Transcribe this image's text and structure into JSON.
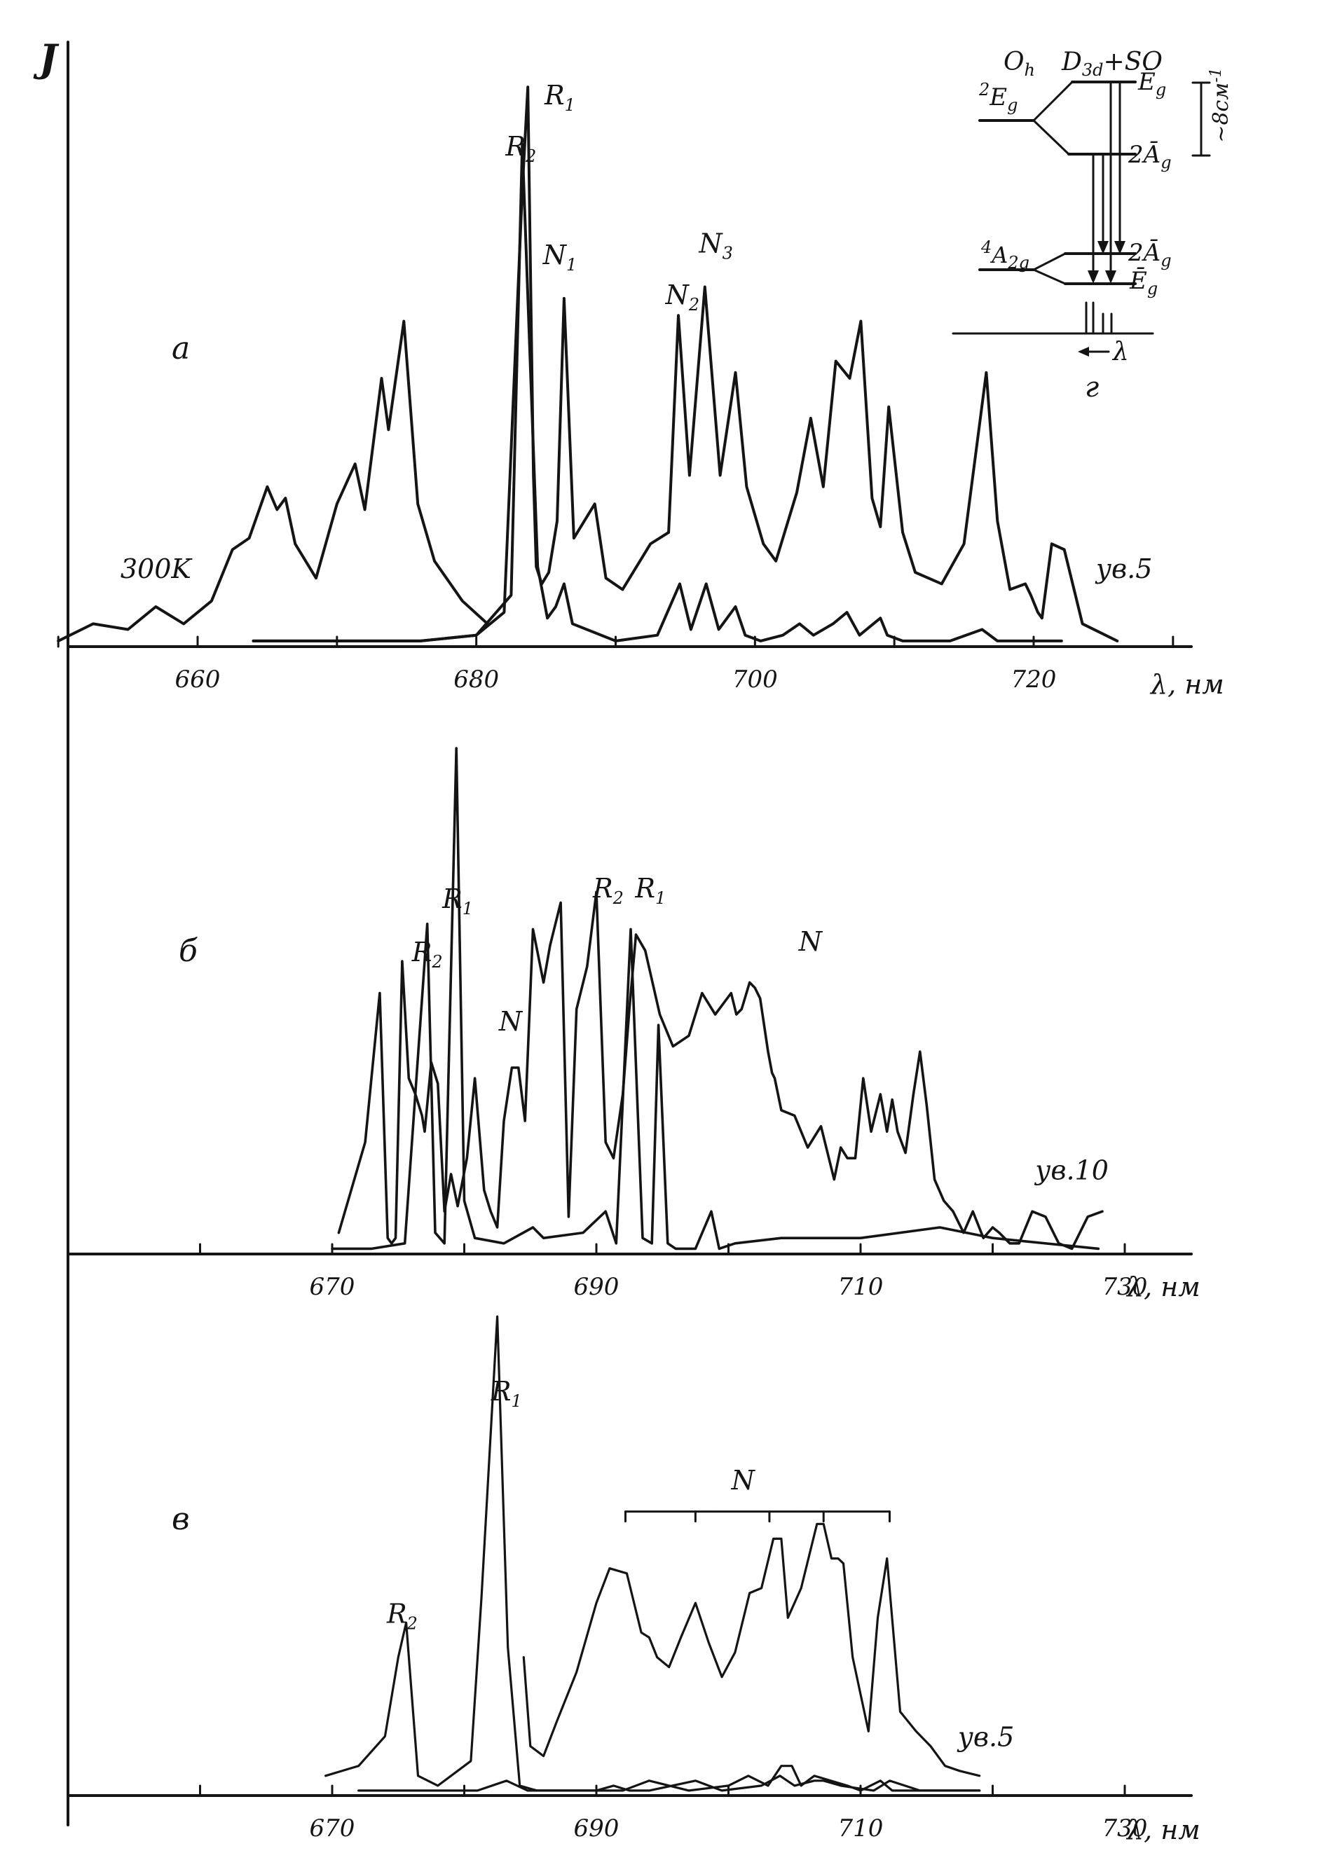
{
  "figure": {
    "y_axis_label": "J",
    "colors": {
      "ink": "#141414",
      "background": "#ffffff"
    }
  },
  "chart_data": [
    {
      "type": "line",
      "panel_label": "а",
      "xlabel": "λ, нм",
      "x_ticks": [
        "660",
        "680",
        "700",
        "720"
      ],
      "xlim": [
        650,
        730
      ],
      "ylim": [
        0,
        1
      ],
      "grid": false,
      "annotations": [
        {
          "text": "300K",
          "x": 657,
          "y": 0.12
        },
        {
          "text": "R",
          "sub": "2",
          "x": 683.2,
          "y": 0.86
        },
        {
          "text": "R",
          "sub": "1",
          "x": 686.0,
          "y": 0.95
        },
        {
          "text": "N",
          "sub": "1",
          "x": 686.0,
          "y": 0.67
        },
        {
          "text": "N",
          "sub": "2",
          "x": 694.8,
          "y": 0.6
        },
        {
          "text": "N",
          "sub": "3",
          "x": 697.2,
          "y": 0.69
        },
        {
          "text": "ув.5",
          "x": 726.5,
          "y": 0.12
        }
      ],
      "series": [
        {
          "x": [
            650,
            652.5,
            655,
            657,
            659,
            661,
            662.5,
            663.7,
            665,
            665.7,
            666.3,
            667,
            668.5,
            670,
            671.3,
            672,
            673.2,
            673.7,
            674.8,
            675.8,
            677,
            679,
            680.8
          ],
          "values": [
            0.01,
            0.04,
            0.03,
            0.07,
            0.04,
            0.08,
            0.17,
            0.19,
            0.28,
            0.24,
            0.26,
            0.18,
            0.12,
            0.25,
            0.32,
            0.24,
            0.47,
            0.38,
            0.57,
            0.25,
            0.15,
            0.08,
            0.04
          ]
        },
        {
          "x": [
            664,
            670,
            676,
            680,
            682,
            683.3,
            683.7,
            684.1,
            684.3,
            684.7,
            685.2,
            685.8,
            686.3,
            687,
            688.5,
            689.3,
            690.5,
            692.5,
            693.8,
            694.5,
            695.3,
            696.4,
            697.5,
            698.6,
            699.4,
            700.6,
            701.5,
            703,
            704,
            704.9,
            705.8,
            706.8,
            707.6,
            708.4,
            709,
            709.6,
            710.6,
            711.5,
            713.4,
            715,
            716.6,
            717.4,
            718.3,
            719.4,
            719.8,
            720.3,
            720.6,
            721.3,
            722.2,
            723.5,
            726
          ],
          "values": [
            0.01,
            0.01,
            0.01,
            0.02,
            0.06,
            0.8,
            0.98,
            0.3,
            0.14,
            0.11,
            0.13,
            0.22,
            0.61,
            0.19,
            0.25,
            0.12,
            0.1,
            0.18,
            0.2,
            0.58,
            0.3,
            0.63,
            0.3,
            0.48,
            0.28,
            0.18,
            0.15,
            0.27,
            0.4,
            0.28,
            0.5,
            0.47,
            0.57,
            0.26,
            0.21,
            0.42,
            0.2,
            0.13,
            0.11,
            0.18,
            0.48,
            0.22,
            0.1,
            0.11,
            0.09,
            0.06,
            0.05,
            0.18,
            0.17,
            0.04,
            0.01
          ]
        },
        {
          "x": [
            664,
            676,
            680,
            682.5,
            683.3,
            684.4,
            685.1,
            685.7,
            686.3,
            686.9,
            690,
            693,
            694.6,
            695.4,
            696.5,
            697.4,
            698.6,
            699.3,
            700.4,
            702,
            703.2,
            704.2,
            705.6,
            706.6,
            707.5,
            708.5,
            709,
            709.5,
            710.6,
            714,
            716.3,
            717.4,
            719.5,
            722
          ],
          "values": [
            0.01,
            0.01,
            0.02,
            0.09,
            0.88,
            0.14,
            0.05,
            0.07,
            0.11,
            0.04,
            0.01,
            0.02,
            0.11,
            0.03,
            0.11,
            0.03,
            0.07,
            0.02,
            0.01,
            0.02,
            0.04,
            0.02,
            0.04,
            0.06,
            0.02,
            0.04,
            0.05,
            0.02,
            0.01,
            0.01,
            0.03,
            0.01,
            0.01,
            0.01
          ]
        }
      ]
    },
    {
      "type": "line",
      "panel_label": "б",
      "xlabel": "λ, нм",
      "x_ticks": [
        "670",
        "690",
        "710",
        "730"
      ],
      "xlim": [
        660,
        734
      ],
      "ylim": [
        0,
        1
      ],
      "grid": false,
      "annotations": [
        {
          "text": "R",
          "sub": "2",
          "x": 677.2,
          "y": 0.55
        },
        {
          "text": "R",
          "sub": "1",
          "x": 679.5,
          "y": 0.65
        },
        {
          "text": "N",
          "x": 683.5,
          "y": 0.42
        },
        {
          "text": "R",
          "sub": "2",
          "x": 690.9,
          "y": 0.67
        },
        {
          "text": "R",
          "sub": "1",
          "x": 694.1,
          "y": 0.67
        },
        {
          "text": "N",
          "x": 706.2,
          "y": 0.57
        },
        {
          "text": "ув.10",
          "x": 726,
          "y": 0.14
        }
      ],
      "series": [
        {
          "x": [
            670.5,
            672.5,
            673.6,
            674.2,
            674.5,
            674.8,
            675.3,
            675.8,
            676.3,
            676.8,
            677,
            677.5,
            678,
            678.5,
            679,
            679.5,
            680.2,
            680.8,
            681.5,
            682,
            682.5,
            683,
            683.6,
            684.1,
            684.6,
            685.2,
            686,
            686.5,
            687.3,
            687.9,
            688.5,
            689.3,
            690,
            690.7,
            691.3,
            692,
            692.5,
            693,
            693.7,
            694.8,
            695.8,
            697,
            698,
            699,
            700.2,
            700.6,
            701,
            701.6,
            702,
            702.4,
            703,
            703.3,
            703.5,
            704,
            705,
            706,
            707,
            708,
            708.5,
            709,
            709.6,
            710.2,
            710.8,
            711.5,
            712,
            712.4,
            712.8,
            713.4,
            714,
            714.5,
            715,
            715.6,
            716.3,
            717,
            717.8,
            718.5,
            719.3,
            720,
            720.5,
            721.3,
            722,
            723,
            724,
            725,
            726,
            727.2,
            728.3
          ],
          "values": [
            0.04,
            0.21,
            0.49,
            0.03,
            0.02,
            0.03,
            0.55,
            0.33,
            0.3,
            0.26,
            0.23,
            0.36,
            0.32,
            0.08,
            0.15,
            0.09,
            0.18,
            0.33,
            0.12,
            0.08,
            0.05,
            0.25,
            0.35,
            0.35,
            0.25,
            0.61,
            0.51,
            0.58,
            0.66,
            0.07,
            0.46,
            0.54,
            0.68,
            0.21,
            0.18,
            0.3,
            0.46,
            0.6,
            0.57,
            0.45,
            0.39,
            0.41,
            0.49,
            0.45,
            0.49,
            0.45,
            0.46,
            0.51,
            0.5,
            0.48,
            0.38,
            0.34,
            0.33,
            0.27,
            0.26,
            0.2,
            0.24,
            0.14,
            0.2,
            0.18,
            0.18,
            0.33,
            0.23,
            0.3,
            0.23,
            0.29,
            0.23,
            0.19,
            0.3,
            0.38,
            0.28,
            0.14,
            0.1,
            0.08,
            0.04,
            0.08,
            0.03,
            0.05,
            0.04,
            0.02,
            0.02,
            0.08,
            0.07,
            0.02,
            0.01,
            0.07,
            0.08
          ]
        },
        {
          "x": [
            670,
            673,
            675.5,
            677.2,
            677.8,
            678.5,
            679.4,
            680,
            680.8,
            683,
            685.2,
            686,
            689,
            690.7,
            691.5,
            692.6,
            693.5,
            694.2,
            694.7,
            695.4,
            696,
            697.5,
            698.7,
            699.3,
            700.5,
            704,
            710,
            716,
            720,
            728
          ],
          "values": [
            0.01,
            0.01,
            0.02,
            0.62,
            0.04,
            0.02,
            0.95,
            0.1,
            0.03,
            0.02,
            0.05,
            0.03,
            0.04,
            0.08,
            0.02,
            0.61,
            0.03,
            0.02,
            0.43,
            0.02,
            0.01,
            0.01,
            0.08,
            0.01,
            0.02,
            0.03,
            0.03,
            0.05,
            0.03,
            0.01
          ]
        }
      ]
    },
    {
      "type": "line",
      "panel_label": "в",
      "xlabel": "λ, нм",
      "x_ticks": [
        "670",
        "690",
        "710",
        "730"
      ],
      "xlim": [
        660,
        734
      ],
      "ylim": [
        0,
        1
      ],
      "grid": false,
      "annotations": [
        {
          "text": "R",
          "sub": "2",
          "x": 675.3,
          "y": 0.35
        },
        {
          "text": "R",
          "sub": "1",
          "x": 683.2,
          "y": 0.8
        },
        {
          "text": "N",
          "x": 701.1,
          "y": 0.62
        },
        {
          "text": "ув.5",
          "x": 719.5,
          "y": 0.1
        }
      ],
      "N_bracket": {
        "x_start": 692.2,
        "x_end": 712.2,
        "level": 0.575,
        "ticks": [
          692.2,
          697.5,
          703.1,
          707.2,
          712.2
        ]
      },
      "series": [
        {
          "x": [
            684.5,
            685,
            686,
            687,
            688.5,
            690,
            691,
            692.3,
            693.4,
            694,
            694.6,
            695.5,
            696.4,
            697.5,
            698.5,
            699.5,
            700.5,
            701.6,
            702.5,
            703.4,
            704,
            704.5,
            705.5,
            706.7,
            707.2,
            707.8,
            708.3,
            708.7,
            709.4,
            710.6,
            711.3,
            712,
            713,
            714.2,
            715.3,
            716.4,
            717.5,
            719
          ],
          "values": [
            0.28,
            0.1,
            0.08,
            0.15,
            0.25,
            0.39,
            0.46,
            0.45,
            0.33,
            0.32,
            0.28,
            0.26,
            0.32,
            0.39,
            0.31,
            0.24,
            0.29,
            0.41,
            0.42,
            0.52,
            0.52,
            0.36,
            0.42,
            0.55,
            0.55,
            0.48,
            0.48,
            0.47,
            0.28,
            0.13,
            0.36,
            0.48,
            0.17,
            0.13,
            0.1,
            0.06,
            0.05,
            0.04
          ]
        },
        {
          "x": [
            669.5,
            672,
            674,
            675,
            675.6,
            676.5,
            678,
            680.5,
            681.3,
            682.5,
            683.3,
            684.2,
            685.5,
            687,
            692,
            694,
            697,
            700,
            701.5,
            703,
            704,
            704.8,
            705.5,
            706.5,
            709,
            710,
            711.5,
            712.4,
            713.5,
            716,
            719
          ],
          "values": [
            0.04,
            0.06,
            0.12,
            0.28,
            0.35,
            0.04,
            0.02,
            0.07,
            0.4,
            0.97,
            0.3,
            0.02,
            0.01,
            0.01,
            0.01,
            0.03,
            0.01,
            0.02,
            0.04,
            0.02,
            0.06,
            0.06,
            0.02,
            0.04,
            0.02,
            0.01,
            0.03,
            0.01,
            0.01,
            0.01,
            0.01
          ]
        },
        {
          "x": [
            672,
            677,
            681,
            683.2,
            684.8,
            688,
            690,
            691.3,
            692.5,
            694,
            697.5,
            699.5,
            702.5,
            703.9,
            705,
            706.5,
            707.2,
            708.5,
            711,
            712.2,
            714.5,
            717,
            719
          ],
          "values": [
            0.01,
            0.01,
            0.01,
            0.03,
            0.01,
            0.01,
            0.01,
            0.02,
            0.01,
            0.01,
            0.03,
            0.01,
            0.02,
            0.04,
            0.02,
            0.03,
            0.03,
            0.02,
            0.01,
            0.03,
            0.01,
            0.01,
            0.01
          ]
        }
      ]
    }
  ],
  "energy_diagram": {
    "panel_label": "г",
    "left_group": "O",
    "left_group_sub": "h",
    "right_group": "D",
    "right_group_sub": "3d",
    "right_group_suffix": "+SO",
    "upper_state": "E",
    "upper_state_pre": "2",
    "upper_state_sub": "g",
    "lower_state": "A",
    "lower_state_pre": "4",
    "lower_state_sub": "2g",
    "level_labels": [
      "Ē",
      "g",
      "2Ā",
      "g",
      "2Ā",
      "g",
      "Ē",
      "g"
    ],
    "splitting": "~8см",
    "splitting_sup": "-1",
    "wavelength_symbol": "λ"
  }
}
